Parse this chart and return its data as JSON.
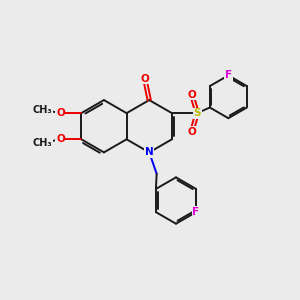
{
  "bg_color": "#ebebeb",
  "bond_color": "#1a1a1a",
  "N_color": "#0000ee",
  "O_color": "#ee0000",
  "F_color": "#dd00dd",
  "S_color": "#bbbb00",
  "lw": 1.4,
  "fs": 7.5,
  "xlim": [
    0,
    10
  ],
  "ylim": [
    0,
    10
  ]
}
